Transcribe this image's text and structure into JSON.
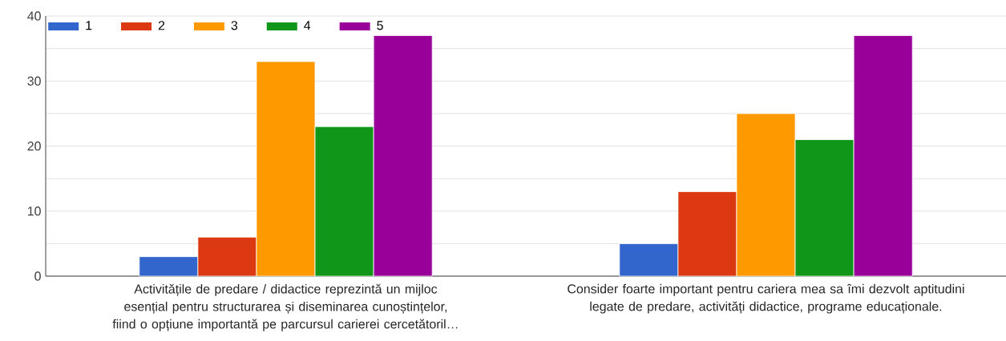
{
  "chart_data": {
    "type": "bar",
    "categories": [
      "Activitățile de predare / didactice reprezintă un mijloc esențial pentru structurarea și diseminarea cunoștințelor, fiind o opțiune importantă pe parcursul carierei cercetătoril…",
      "Consider foarte important pentru cariera mea sa îmi dezvolt aptitudini legate de predare, activități didactice, programe educaționale."
    ],
    "series": [
      {
        "name": "1",
        "color": "#3366cc",
        "values": [
          3,
          5
        ]
      },
      {
        "name": "2",
        "color": "#dc3912",
        "values": [
          6,
          13
        ]
      },
      {
        "name": "3",
        "color": "#ff9900",
        "values": [
          33,
          25
        ]
      },
      {
        "name": "4",
        "color": "#109618",
        "values": [
          23,
          21
        ]
      },
      {
        "name": "5",
        "color": "#990099",
        "values": [
          37,
          37
        ]
      }
    ],
    "ylim": [
      0,
      40
    ],
    "yticks": [
      0,
      {
        "value": 5,
        "label": null
      },
      10,
      {
        "value": 15,
        "label": null
      },
      20,
      {
        "value": 25,
        "label": null
      },
      30,
      {
        "value": 35,
        "label": null
      },
      40
    ],
    "grid": true,
    "legend": "top left"
  }
}
